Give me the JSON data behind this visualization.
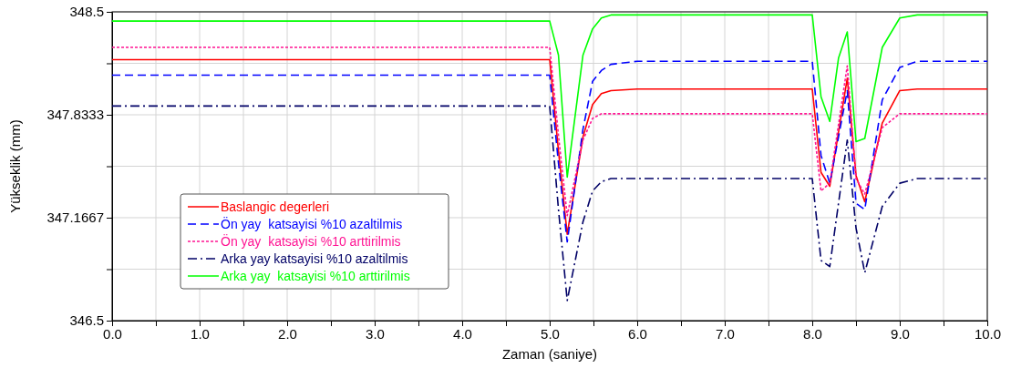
{
  "chart_data": {
    "type": "line",
    "xlabel": "Zaman (saniye)",
    "ylabel": "Yükseklik (mm)",
    "x": [
      0,
      5.0,
      5.1,
      5.2,
      5.38,
      5.49,
      5.59,
      5.7,
      6.0,
      8.0,
      8.1,
      8.2,
      8.3,
      8.4,
      8.5,
      8.6,
      8.8,
      9.0,
      9.2,
      10.0
    ],
    "series": [
      {
        "name": "Baslangic degerleri",
        "color": "#ff0000",
        "line_style": "solid",
        "values": [
          348.19,
          348.19,
          347.6,
          347.06,
          347.69,
          347.9,
          347.97,
          347.99,
          348.0,
          348.0,
          347.46,
          347.37,
          347.72,
          348.07,
          347.44,
          347.27,
          347.78,
          347.99,
          348.0,
          348.0
        ]
      },
      {
        "name": "Ön yay  katsayisi %10 azaltilmis",
        "color": "#0000ff",
        "line_style": "dashed",
        "values": [
          348.09,
          348.09,
          347.52,
          347.01,
          347.74,
          348.05,
          348.12,
          348.16,
          348.18,
          348.18,
          347.57,
          347.39,
          347.69,
          347.99,
          347.26,
          347.22,
          347.93,
          348.14,
          348.18,
          348.18
        ]
      },
      {
        "name": "Ön yay  katsayisi %10 arttirilmis",
        "color": "#ff1493",
        "line_style": "dotted",
        "values": [
          348.27,
          348.27,
          347.7,
          347.18,
          347.67,
          347.81,
          347.84,
          347.84,
          347.84,
          347.84,
          347.34,
          347.39,
          347.77,
          348.15,
          347.42,
          347.32,
          347.75,
          347.84,
          347.84,
          347.84
        ]
      },
      {
        "name": "Arka yay katsayisi %10 azaltilmis",
        "color": "#000066",
        "line_style": "dashdot",
        "values": [
          347.89,
          347.89,
          347.22,
          346.63,
          347.14,
          347.34,
          347.4,
          347.42,
          347.42,
          347.42,
          346.89,
          346.85,
          347.26,
          347.67,
          347.1,
          346.81,
          347.24,
          347.39,
          347.42,
          347.42
        ]
      },
      {
        "name": "Arka yay  katsayisi %10 arttirilmis",
        "color": "#00ff00",
        "line_style": "solid",
        "values": [
          348.44,
          348.44,
          348.22,
          347.43,
          348.22,
          348.39,
          348.46,
          348.48,
          348.48,
          348.48,
          347.95,
          347.79,
          348.2,
          348.37,
          347.66,
          347.68,
          348.27,
          348.46,
          348.48,
          348.48
        ]
      }
    ],
    "xlim": [
      0,
      10
    ],
    "xticks": [
      {
        "value": 0,
        "label": "0.0"
      },
      {
        "value": 0.5,
        "label": null
      },
      {
        "value": 1,
        "label": "1.0"
      },
      {
        "value": 1.5,
        "label": null
      },
      {
        "value": 2,
        "label": "2.0"
      },
      {
        "value": 2.5,
        "label": null
      },
      {
        "value": 3,
        "label": "3.0"
      },
      {
        "value": 3.5,
        "label": null
      },
      {
        "value": 4,
        "label": "4.0"
      },
      {
        "value": 4.5,
        "label": null
      },
      {
        "value": 5,
        "label": "5.0"
      },
      {
        "value": 5.5,
        "label": null
      },
      {
        "value": 6,
        "label": "6.0"
      },
      {
        "value": 6.5,
        "label": null
      },
      {
        "value": 7,
        "label": "7.0"
      },
      {
        "value": 7.5,
        "label": null
      },
      {
        "value": 8,
        "label": "8.0"
      },
      {
        "value": 8.5,
        "label": null
      },
      {
        "value": 9,
        "label": "9.0"
      },
      {
        "value": 9.5,
        "label": null
      },
      {
        "value": 10,
        "label": "10.0"
      }
    ],
    "ylim": [
      346.5,
      348.5
    ],
    "yticks": [
      346.5,
      {
        "value": 346.8333,
        "label": null
      },
      347.1667,
      {
        "value": 347.5,
        "label": null
      },
      347.8333,
      {
        "value": 348.1667,
        "label": null
      },
      348.5
    ],
    "grid": true,
    "legend": "bottom left",
    "marker": "none"
  }
}
